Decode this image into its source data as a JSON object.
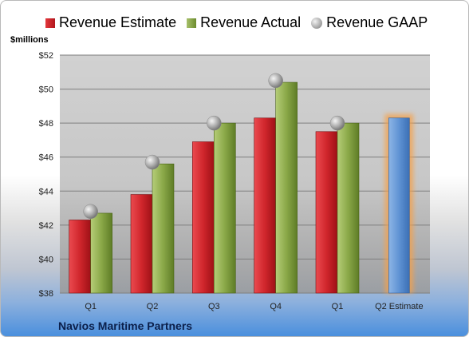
{
  "chart_data": {
    "type": "bar",
    "ylabel": "$millions",
    "categories": [
      "Q1",
      "Q2",
      "Q3",
      "Q4",
      "Q1",
      "Q2 Estimate"
    ],
    "ylim": [
      38,
      52
    ],
    "yticks": [
      "$38",
      "$40",
      "$42",
      "$44",
      "$46",
      "$48",
      "$50",
      "$52"
    ],
    "ytick_values": [
      38,
      40,
      42,
      44,
      46,
      48,
      50,
      52
    ],
    "grid": true,
    "legend_position": "top",
    "series": [
      {
        "name": "Revenue Estimate",
        "kind": "bar",
        "color": "#c9252b",
        "values": [
          42.3,
          43.8,
          46.9,
          48.3,
          47.5,
          null
        ]
      },
      {
        "name": "Revenue Actual",
        "kind": "bar",
        "color": "#86a444",
        "values": [
          42.7,
          45.6,
          48.0,
          50.4,
          48.0,
          null
        ]
      },
      {
        "name": "Revenue GAAP",
        "kind": "marker",
        "color": "#a6a6a6",
        "values": [
          42.8,
          45.7,
          48.0,
          50.5,
          48.0,
          null
        ]
      },
      {
        "name": "",
        "kind": "bar",
        "color": "#5a8fd1",
        "highlight": "#f5a04a",
        "values": [
          null,
          null,
          null,
          null,
          null,
          48.3
        ]
      }
    ]
  },
  "legend": {
    "estimate": "Revenue Estimate",
    "actual": "Revenue Actual",
    "gaap": "Revenue GAAP"
  },
  "unit_label": "$millions",
  "company": "Navios Maritime Partners"
}
